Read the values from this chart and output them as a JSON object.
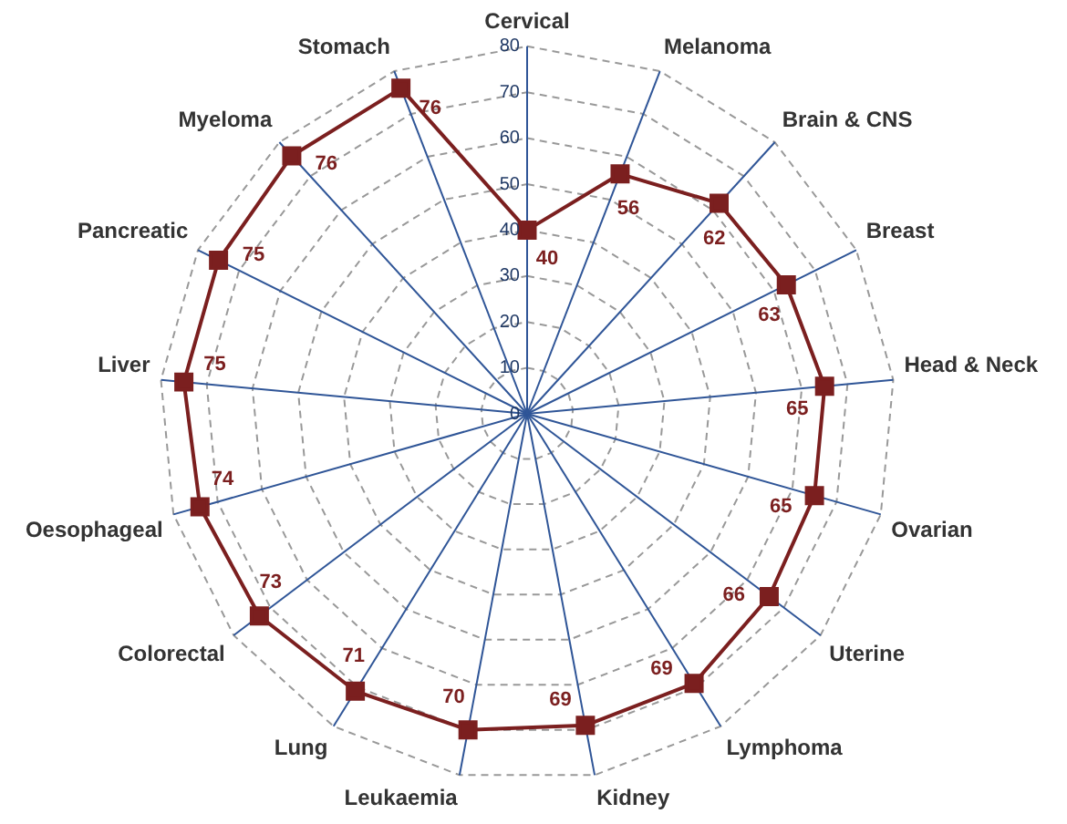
{
  "chart_data": {
    "type": "radar",
    "categories": [
      "Cervical",
      "Melanoma",
      "Brain & CNS",
      "Breast",
      "Head & Neck",
      "Ovarian",
      "Uterine",
      "Lymphoma",
      "Kidney",
      "Leukaemia",
      "Lung",
      "Colorectal",
      "Oesophageal",
      "Liver",
      "Pancreatic",
      "Myeloma",
      "Stomach"
    ],
    "series": [
      {
        "color": "#7b1f1f",
        "values": [
          40,
          56,
          62,
          63,
          65,
          65,
          66,
          69,
          69,
          70,
          71,
          73,
          74,
          75,
          75,
          76,
          76
        ]
      }
    ],
    "ylim": [
      0,
      80
    ],
    "yticks": [
      0,
      10,
      20,
      30,
      40,
      50,
      60,
      70,
      80
    ],
    "grid": true,
    "legend": false,
    "marker": "square",
    "line_style": "solid",
    "data_labels": true
  }
}
